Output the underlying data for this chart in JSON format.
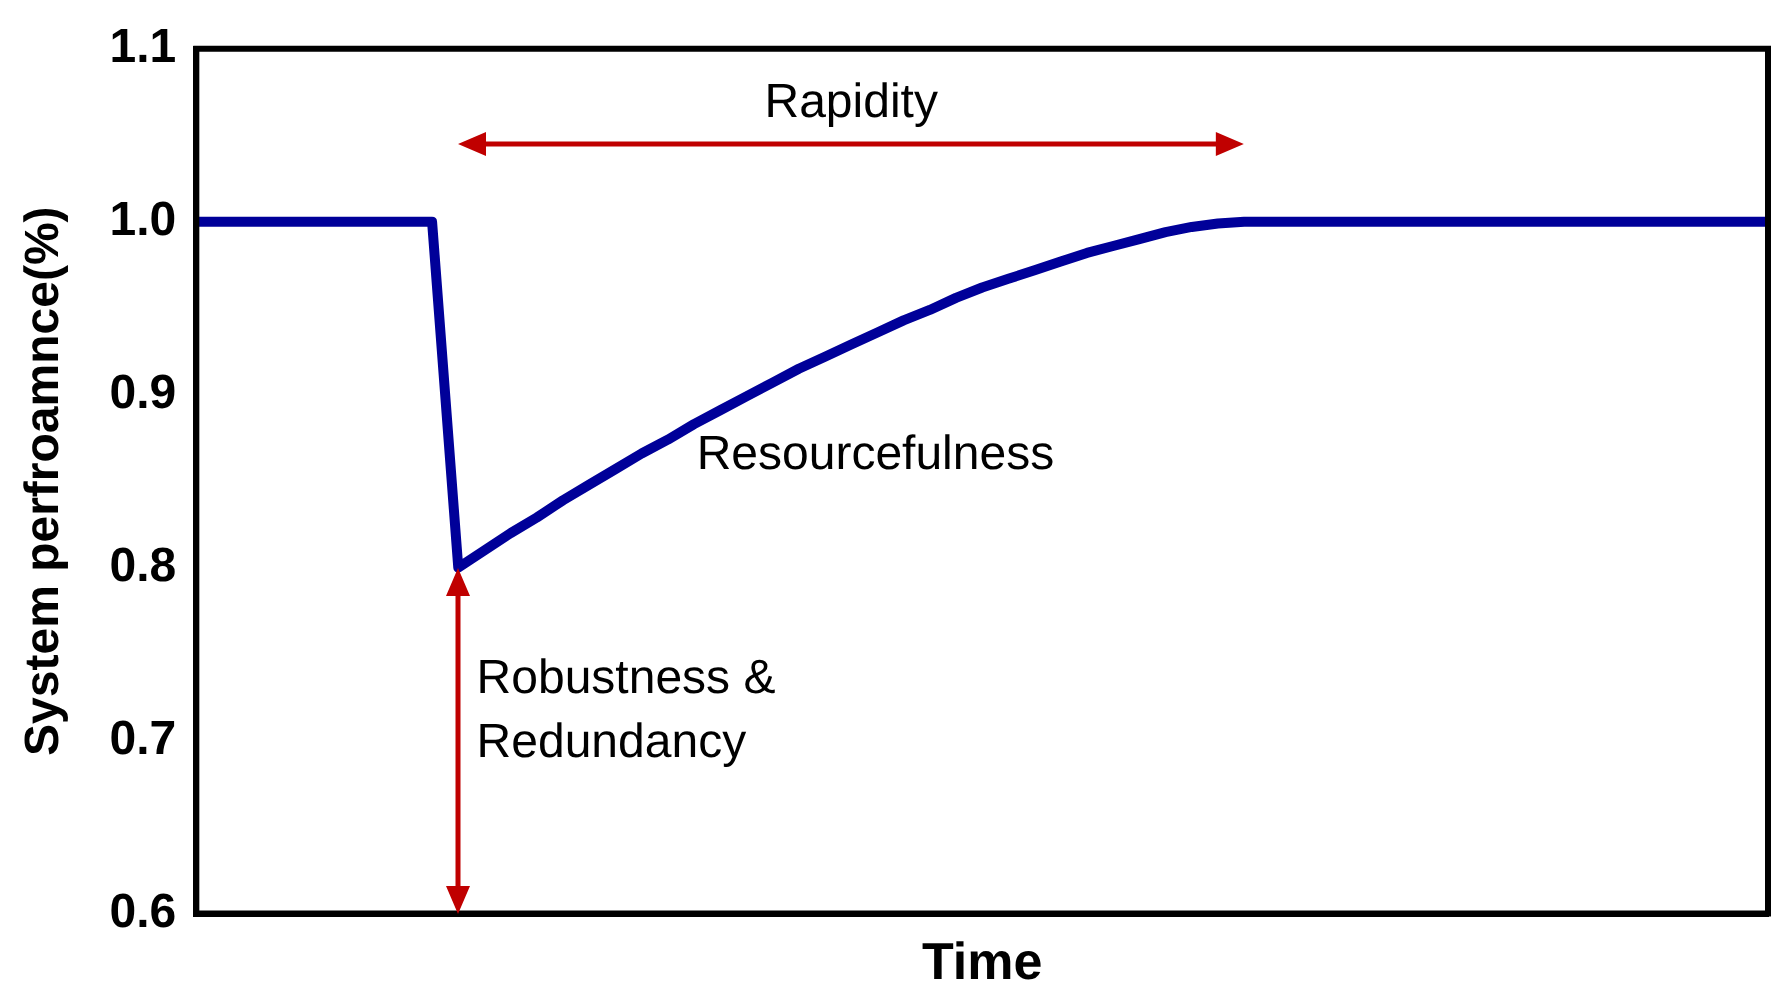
{
  "chart_data": {
    "type": "line",
    "xlabel": "Time",
    "ylabel": "System perfroamnce(%)",
    "categories": [
      null,
      null,
      null,
      null,
      null,
      null,
      null,
      null,
      null,
      null,
      null,
      null,
      null,
      null,
      null,
      null,
      null,
      null,
      null,
      null,
      null,
      null,
      null,
      null,
      null,
      null,
      null,
      null,
      null,
      null,
      null,
      null,
      null,
      null,
      null,
      null,
      null,
      null,
      null,
      null,
      null,
      null,
      null,
      null,
      null,
      null,
      null,
      null,
      null,
      null,
      null,
      null,
      null,
      null,
      null,
      null,
      null,
      null,
      null,
      null,
      null
    ],
    "series": [
      {
        "color": "#000099",
        "values": [
          1.0,
          1.0,
          1.0,
          1.0,
          1.0,
          1.0,
          1.0,
          1.0,
          1.0,
          1.0,
          0.8,
          0.81,
          0.82,
          0.829,
          0.839,
          0.848,
          0.857,
          0.866,
          0.874,
          0.883,
          0.891,
          0.899,
          0.907,
          0.915,
          0.922,
          0.929,
          0.936,
          0.943,
          0.949,
          0.956,
          0.962,
          0.967,
          0.972,
          0.977,
          0.982,
          0.986,
          0.99,
          0.994,
          0.997,
          0.999,
          1.0,
          1.0,
          1.0,
          1.0,
          1.0,
          1.0,
          1.0,
          1.0,
          1.0,
          1.0,
          1.0,
          1.0,
          1.0,
          1.0,
          1.0,
          1.0,
          1.0,
          1.0,
          1.0,
          1.0,
          1.0
        ]
      }
    ],
    "ylim": [
      0.6,
      1.1
    ],
    "yticks": [
      {
        "value": 0.6,
        "label": "0.6"
      },
      {
        "value": 0.7,
        "label": "0.7"
      },
      {
        "value": 0.8,
        "label": "0.8"
      },
      {
        "value": 0.9,
        "label": "0.9"
      },
      {
        "value": 1.0,
        "label": "1.0"
      },
      {
        "value": 1.1,
        "label": "1.1"
      }
    ],
    "tick_labels": "y",
    "marker": "none",
    "annotations": [
      "Rapidity",
      "Resourcefulness",
      "Robustness & Redundancy"
    ]
  }
}
